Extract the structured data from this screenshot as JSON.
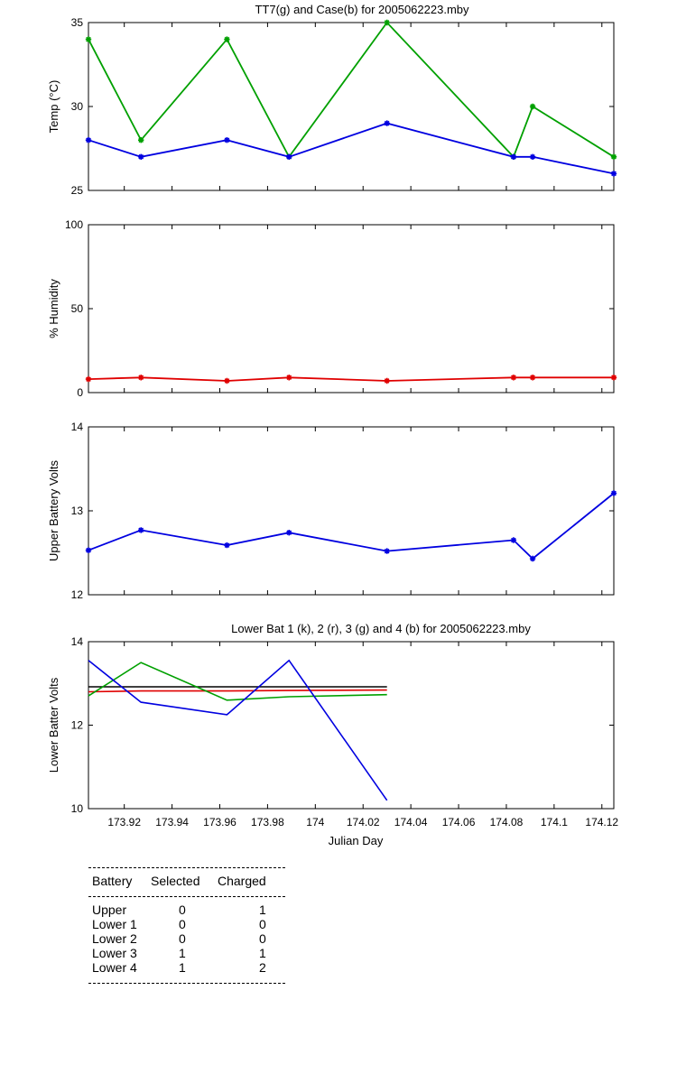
{
  "chart_data": [
    {
      "type": "line",
      "title": "TT7(g) and Case(b) for 2005062223.mby",
      "xlabel": "",
      "ylabel": "Temp  (°C)",
      "xlim": [
        173.905,
        174.125
      ],
      "ylim": [
        25,
        35
      ],
      "yticks": [
        25,
        30,
        35
      ],
      "series": [
        {
          "color": "#00a000",
          "marker": "*",
          "x": [
            173.905,
            173.927,
            173.963,
            173.989,
            174.03,
            174.083,
            174.091,
            174.125
          ],
          "y": [
            34,
            28,
            34,
            27,
            35,
            27,
            30,
            27
          ]
        },
        {
          "color": "#0000e0",
          "marker": "*",
          "x": [
            173.905,
            173.927,
            173.963,
            173.989,
            174.03,
            174.083,
            174.091,
            174.125
          ],
          "y": [
            28,
            27,
            28,
            27,
            29,
            27,
            27,
            26
          ]
        }
      ]
    },
    {
      "type": "line",
      "title": "",
      "xlabel": "",
      "ylabel": "% Humidity",
      "xlim": [
        173.905,
        174.125
      ],
      "ylim": [
        0,
        100
      ],
      "yticks": [
        0,
        50,
        100
      ],
      "series": [
        {
          "color": "#e00000",
          "marker": "*",
          "x": [
            173.905,
            173.927,
            173.963,
            173.989,
            174.03,
            174.083,
            174.091,
            174.125
          ],
          "y": [
            8,
            9,
            7,
            9,
            7,
            9,
            9,
            9
          ]
        }
      ]
    },
    {
      "type": "line",
      "title": "",
      "xlabel": "",
      "ylabel": "Upper Battery Volts",
      "xlim": [
        173.905,
        174.125
      ],
      "ylim": [
        12,
        14
      ],
      "yticks": [
        12,
        13,
        14
      ],
      "series": [
        {
          "color": "#0000e0",
          "marker": "*",
          "x": [
            173.905,
            173.927,
            173.963,
            173.989,
            174.03,
            174.083,
            174.091,
            174.125
          ],
          "y": [
            12.53,
            12.77,
            12.59,
            12.74,
            12.52,
            12.65,
            12.43,
            13.21
          ]
        }
      ]
    },
    {
      "type": "line",
      "title": "Lower Bat 1 (k), 2 (r), 3 (g) and 4 (b) for 2005062223.mby",
      "xlabel": "Julian Day",
      "ylabel": "Lower Batter Volts",
      "xlim": [
        173.905,
        174.125
      ],
      "ylim": [
        10,
        14
      ],
      "yticks": [
        10,
        12,
        14
      ],
      "xticks": [
        173.92,
        173.94,
        173.96,
        173.98,
        174,
        174.02,
        174.04,
        174.06,
        174.08,
        174.1,
        174.12
      ],
      "xtick_labels": [
        "173.92",
        "173.94",
        "173.96",
        "173.98",
        "174",
        "174.02",
        "174.04",
        "174.06",
        "174.08",
        "174.1",
        "174.12"
      ],
      "series": [
        {
          "color": "#000000",
          "x": [
            173.905,
            173.927,
            173.963,
            173.989,
            174.03
          ],
          "y": [
            12.92,
            12.92,
            12.92,
            12.92,
            12.92
          ]
        },
        {
          "color": "#e00000",
          "x": [
            173.905,
            173.927,
            173.963,
            173.989,
            174.03
          ],
          "y": [
            12.8,
            12.82,
            12.82,
            12.83,
            12.84
          ]
        },
        {
          "color": "#00a000",
          "x": [
            173.905,
            173.927,
            173.963,
            173.989,
            174.03
          ],
          "y": [
            12.7,
            13.5,
            12.6,
            12.68,
            12.73
          ]
        },
        {
          "color": "#0000e0",
          "x": [
            173.905,
            173.927,
            173.963,
            173.989,
            174.03
          ],
          "y": [
            13.55,
            12.55,
            12.25,
            13.55,
            10.2
          ]
        }
      ]
    }
  ],
  "battery_table": {
    "headers": [
      "Battery",
      "Selected",
      "Charged"
    ],
    "rows": [
      [
        "Upper",
        "0",
        "1"
      ],
      [
        "Lower 1",
        "0",
        "0"
      ],
      [
        "Lower 2",
        "0",
        "0"
      ],
      [
        "Lower 3",
        "1",
        "1"
      ],
      [
        "Lower 4",
        "1",
        "2"
      ]
    ]
  }
}
